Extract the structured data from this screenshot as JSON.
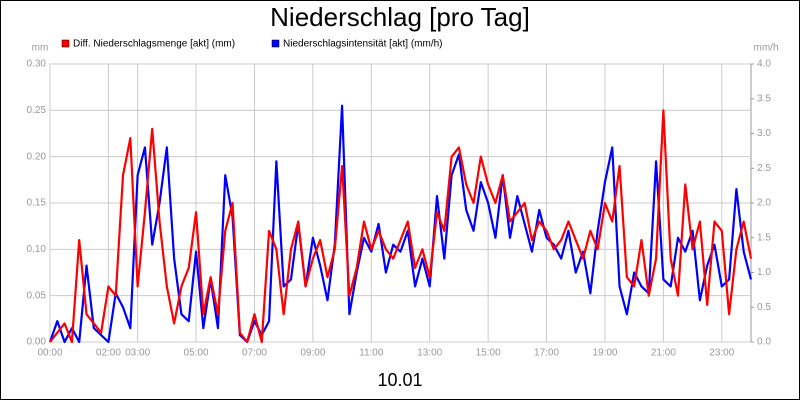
{
  "chart_data": {
    "type": "line",
    "title": "Niederschlag [pro Tag]",
    "xlabel": "10.01",
    "ylabel": "mm",
    "y2label": "mm/h",
    "grid": true,
    "legend": "top",
    "xlim": [
      0,
      24
    ],
    "xticks": [
      {
        "value": 0,
        "label": "00:00"
      },
      {
        "value": 2,
        "label": "02:00"
      },
      {
        "value": 3,
        "label": "03:00"
      },
      {
        "value": 5,
        "label": "05:00"
      },
      {
        "value": 7,
        "label": "07:00"
      },
      {
        "value": 9,
        "label": "09:00"
      },
      {
        "value": 11,
        "label": "11:00"
      },
      {
        "value": 13,
        "label": "13:00"
      },
      {
        "value": 15,
        "label": "15:00"
      },
      {
        "value": 17,
        "label": "17:00"
      },
      {
        "value": 19,
        "label": "19:00"
      },
      {
        "value": 21,
        "label": "21:00"
      },
      {
        "value": 23,
        "label": "23:00"
      }
    ],
    "ylim": [
      0,
      0.3
    ],
    "yticks": [
      {
        "value": 0,
        "label": "0.00"
      },
      {
        "value": 0.05,
        "label": "0.05"
      },
      {
        "value": 0.1,
        "label": "0.10"
      },
      {
        "value": 0.15,
        "label": "0.15"
      },
      {
        "value": 0.2,
        "label": "0.20"
      },
      {
        "value": 0.25,
        "label": "0.25"
      },
      {
        "value": 0.3,
        "label": "0.30"
      }
    ],
    "y2lim": [
      0,
      4
    ],
    "y2ticks": [
      {
        "value": 0,
        "label": "0.0"
      },
      {
        "value": 0.5,
        "label": "0.5"
      },
      {
        "value": 1,
        "label": "1.0"
      },
      {
        "value": 1.5,
        "label": "1.5"
      },
      {
        "value": 2,
        "label": "2.0"
      },
      {
        "value": 2.5,
        "label": "2.5"
      },
      {
        "value": 3,
        "label": "3.0"
      },
      {
        "value": 3.5,
        "label": "3.5"
      },
      {
        "value": 4,
        "label": "4.0"
      }
    ],
    "x": [
      0,
      0.25,
      0.5,
      0.75,
      1,
      1.25,
      1.5,
      1.75,
      2,
      2.25,
      2.5,
      2.75,
      3,
      3.25,
      3.5,
      3.75,
      4,
      4.25,
      4.5,
      4.75,
      5,
      5.25,
      5.5,
      5.75,
      6,
      6.25,
      6.5,
      6.75,
      7,
      7.25,
      7.5,
      7.75,
      8,
      8.25,
      8.5,
      8.75,
      9,
      9.25,
      9.5,
      9.75,
      10,
      10.25,
      10.5,
      10.75,
      11,
      11.25,
      11.5,
      11.75,
      12,
      12.25,
      12.5,
      12.75,
      13,
      13.25,
      13.5,
      13.75,
      14,
      14.25,
      14.5,
      14.75,
      15,
      15.25,
      15.5,
      15.75,
      16,
      16.25,
      16.5,
      16.75,
      17,
      17.25,
      17.5,
      17.75,
      18,
      18.25,
      18.5,
      18.75,
      19,
      19.25,
      19.5,
      19.75,
      20,
      20.25,
      20.5,
      20.75,
      21,
      21.25,
      21.5,
      21.75,
      22,
      22.25,
      22.5,
      22.75,
      23,
      23.25,
      23.5,
      23.75,
      24
    ],
    "series": [
      {
        "name": "Diff. Niederschlagsmenge [akt] (mm)",
        "color": "#ff0000",
        "values": [
          0.0,
          0.01,
          0.02,
          0.0,
          0.11,
          0.03,
          0.02,
          0.01,
          0.06,
          0.05,
          0.18,
          0.22,
          0.06,
          0.14,
          0.23,
          0.13,
          0.06,
          0.02,
          0.06,
          0.08,
          0.14,
          0.03,
          0.07,
          0.03,
          0.12,
          0.15,
          0.01,
          0.0,
          0.03,
          0.0,
          0.12,
          0.1,
          0.03,
          0.1,
          0.13,
          0.06,
          0.09,
          0.11,
          0.07,
          0.1,
          0.19,
          0.05,
          0.08,
          0.13,
          0.1,
          0.12,
          0.1,
          0.09,
          0.11,
          0.13,
          0.08,
          0.1,
          0.07,
          0.14,
          0.12,
          0.2,
          0.21,
          0.17,
          0.15,
          0.2,
          0.17,
          0.15,
          0.18,
          0.13,
          0.14,
          0.15,
          0.11,
          0.13,
          0.12,
          0.1,
          0.11,
          0.13,
          0.11,
          0.09,
          0.12,
          0.1,
          0.15,
          0.13,
          0.19,
          0.07,
          0.06,
          0.11,
          0.05,
          0.09,
          0.25,
          0.09,
          0.05,
          0.17,
          0.1,
          0.13,
          0.04,
          0.13,
          0.12,
          0.03,
          0.1,
          0.13,
          0.09
        ]
      },
      {
        "name": "Niederschlagsintensität [akt] (mm/h)",
        "color": "#0000ff",
        "axis": "y2",
        "values": [
          0.0,
          0.3,
          0.0,
          0.2,
          0.0,
          1.1,
          0.2,
          0.1,
          0.0,
          0.7,
          0.5,
          0.2,
          2.4,
          2.8,
          1.4,
          2.0,
          2.8,
          1.2,
          0.4,
          0.3,
          1.3,
          0.2,
          0.9,
          0.2,
          2.4,
          1.8,
          0.1,
          0.0,
          0.3,
          0.1,
          0.3,
          2.6,
          0.8,
          0.9,
          1.7,
          0.8,
          1.5,
          1.1,
          0.6,
          1.4,
          3.4,
          0.4,
          1.0,
          1.5,
          1.3,
          1.7,
          1.0,
          1.4,
          1.3,
          1.6,
          0.8,
          1.2,
          0.8,
          2.1,
          1.2,
          2.4,
          2.7,
          1.9,
          1.6,
          2.3,
          2.0,
          1.5,
          2.4,
          1.5,
          2.1,
          1.7,
          1.3,
          1.9,
          1.5,
          1.4,
          1.2,
          1.6,
          1.0,
          1.3,
          0.7,
          1.6,
          2.3,
          2.8,
          0.8,
          0.4,
          1.0,
          0.8,
          0.7,
          2.6,
          0.9,
          0.8,
          1.5,
          1.3,
          1.6,
          0.6,
          1.1,
          1.4,
          0.8,
          0.9,
          2.2,
          1.3,
          0.9
        ]
      }
    ]
  }
}
